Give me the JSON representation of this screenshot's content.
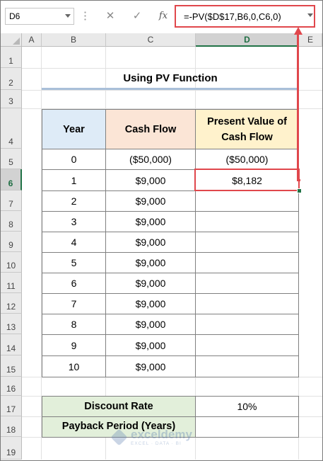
{
  "formula_bar": {
    "name_box": "D6",
    "cancel_icon": "✕",
    "enter_icon": "✓",
    "fx_label": "fx",
    "formula": "=-PV($D$17,B6,0,C6,0)"
  },
  "columns": [
    "A",
    "B",
    "C",
    "D",
    "E"
  ],
  "selected_column": "D",
  "rows": [
    "1",
    "2",
    "3",
    "4",
    "5",
    "6",
    "7",
    "8",
    "9",
    "10",
    "11",
    "12",
    "13",
    "14",
    "15",
    "16",
    "17",
    "18",
    "19"
  ],
  "selected_row": "6",
  "sheet": {
    "title": "Using PV Function",
    "table": {
      "headers": {
        "year": "Year",
        "cash_flow": "Cash Flow",
        "pv_line1": "Present Value of",
        "pv_line2": "Cash Flow"
      },
      "rows": [
        {
          "year": "0",
          "cash_flow": "($50,000)",
          "pv": "($50,000)"
        },
        {
          "year": "1",
          "cash_flow": "$9,000",
          "pv": "$8,182"
        },
        {
          "year": "2",
          "cash_flow": "$9,000",
          "pv": ""
        },
        {
          "year": "3",
          "cash_flow": "$9,000",
          "pv": ""
        },
        {
          "year": "4",
          "cash_flow": "$9,000",
          "pv": ""
        },
        {
          "year": "5",
          "cash_flow": "$9,000",
          "pv": ""
        },
        {
          "year": "6",
          "cash_flow": "$9,000",
          "pv": ""
        },
        {
          "year": "7",
          "cash_flow": "$9,000",
          "pv": ""
        },
        {
          "year": "8",
          "cash_flow": "$9,000",
          "pv": ""
        },
        {
          "year": "9",
          "cash_flow": "$9,000",
          "pv": ""
        },
        {
          "year": "10",
          "cash_flow": "$9,000",
          "pv": ""
        }
      ]
    },
    "summary": {
      "discount_rate_label": "Discount Rate",
      "discount_rate_value": "10%",
      "payback_label": "Payback Period (Years)",
      "payback_value": ""
    }
  },
  "watermark": {
    "name": "exceldemy",
    "tagline": "EXCEL · DATA · BI"
  },
  "colors": {
    "highlight": "#e0474c",
    "selection": "#217346",
    "year_header_bg": "#deebf7",
    "cash_header_bg": "#fbe5d6",
    "pv_header_bg": "#fff2cc",
    "summary_bg": "#e2efda"
  }
}
